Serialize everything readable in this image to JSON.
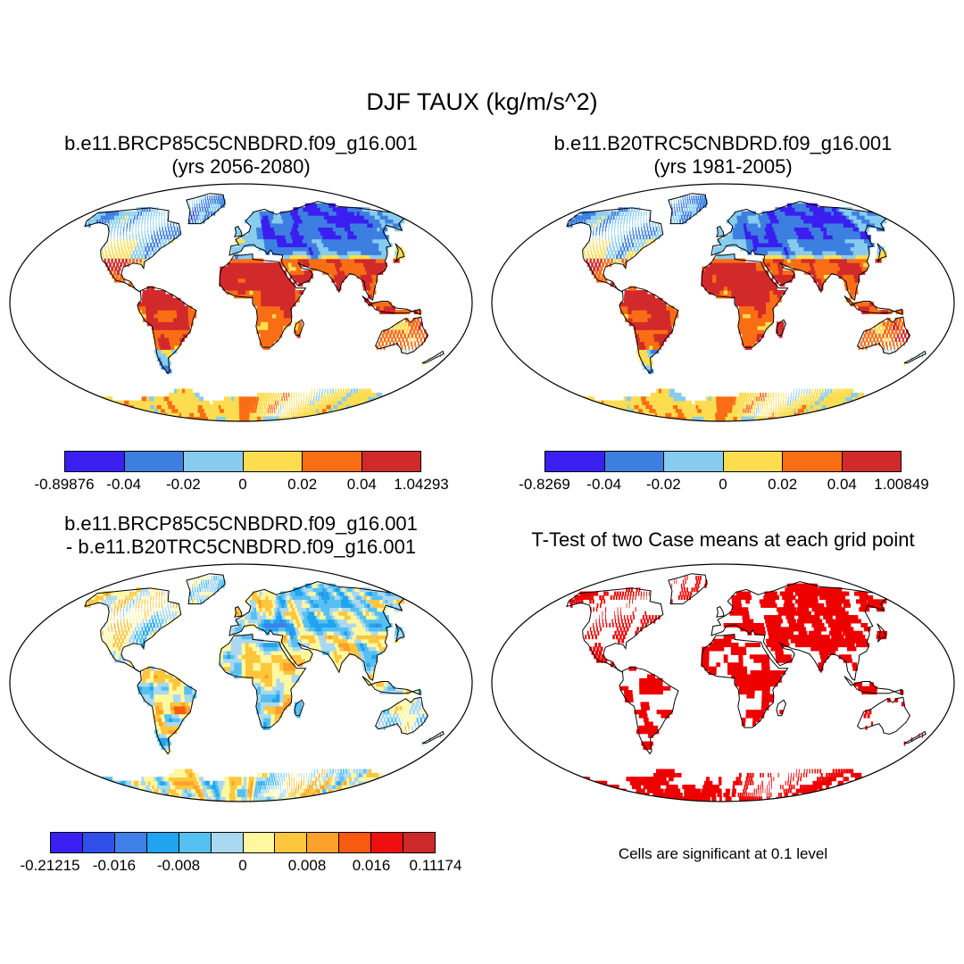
{
  "title": "DJF TAUX (kg/m/s^2)",
  "panels": [
    {
      "id": "future",
      "title_line1": "b.e11.BRCP85C5CNBDRD.f09_g16.001",
      "title_line2": "(yrs 2056-2080)",
      "colorbar": {
        "colors": [
          "#3a1ff0",
          "#3d7fe0",
          "#87ccef",
          "#fddd50",
          "#f96e14",
          "#d22a2a"
        ],
        "labels": [
          "-0.89876",
          "-0.04",
          "-0.02",
          "0",
          "0.02",
          "0.04",
          "1.04293"
        ]
      }
    },
    {
      "id": "historical",
      "title_line1": "b.e11.B20TRC5CNBDRD.f09_g16.001",
      "title_line2": "(yrs 1981-2005)",
      "colorbar": {
        "colors": [
          "#3a1ff0",
          "#3d7fe0",
          "#87ccef",
          "#fddd50",
          "#f96e14",
          "#d22a2a"
        ],
        "labels": [
          "-0.8269",
          "-0.04",
          "-0.02",
          "0",
          "0.02",
          "0.04",
          "1.00849"
        ]
      }
    },
    {
      "id": "difference",
      "title_line1": "b.e11.BRCP85C5CNBDRD.f09_g16.001",
      "title_line2": "- b.e11.B20TRC5CNBDRD.f09_g16.001",
      "colorbar": {
        "colors": [
          "#3a1ff0",
          "#2f4fe8",
          "#3f80e8",
          "#20a4f0",
          "#56c0f0",
          "#aad8f0",
          "#fff8a0",
          "#fdc63c",
          "#fca12a",
          "#f85a10",
          "#ee1010",
          "#cc2a2a"
        ],
        "labels": [
          "-0.21215",
          "-0.016",
          "-0.008",
          "0",
          "0.008",
          "0.016",
          "0.11174"
        ]
      }
    },
    {
      "id": "ttest",
      "title_line1": "T-Test of two Case means at each grid point",
      "significant_color": "#ee0000",
      "note": "Cells are significant at 0.1 level"
    }
  ]
}
